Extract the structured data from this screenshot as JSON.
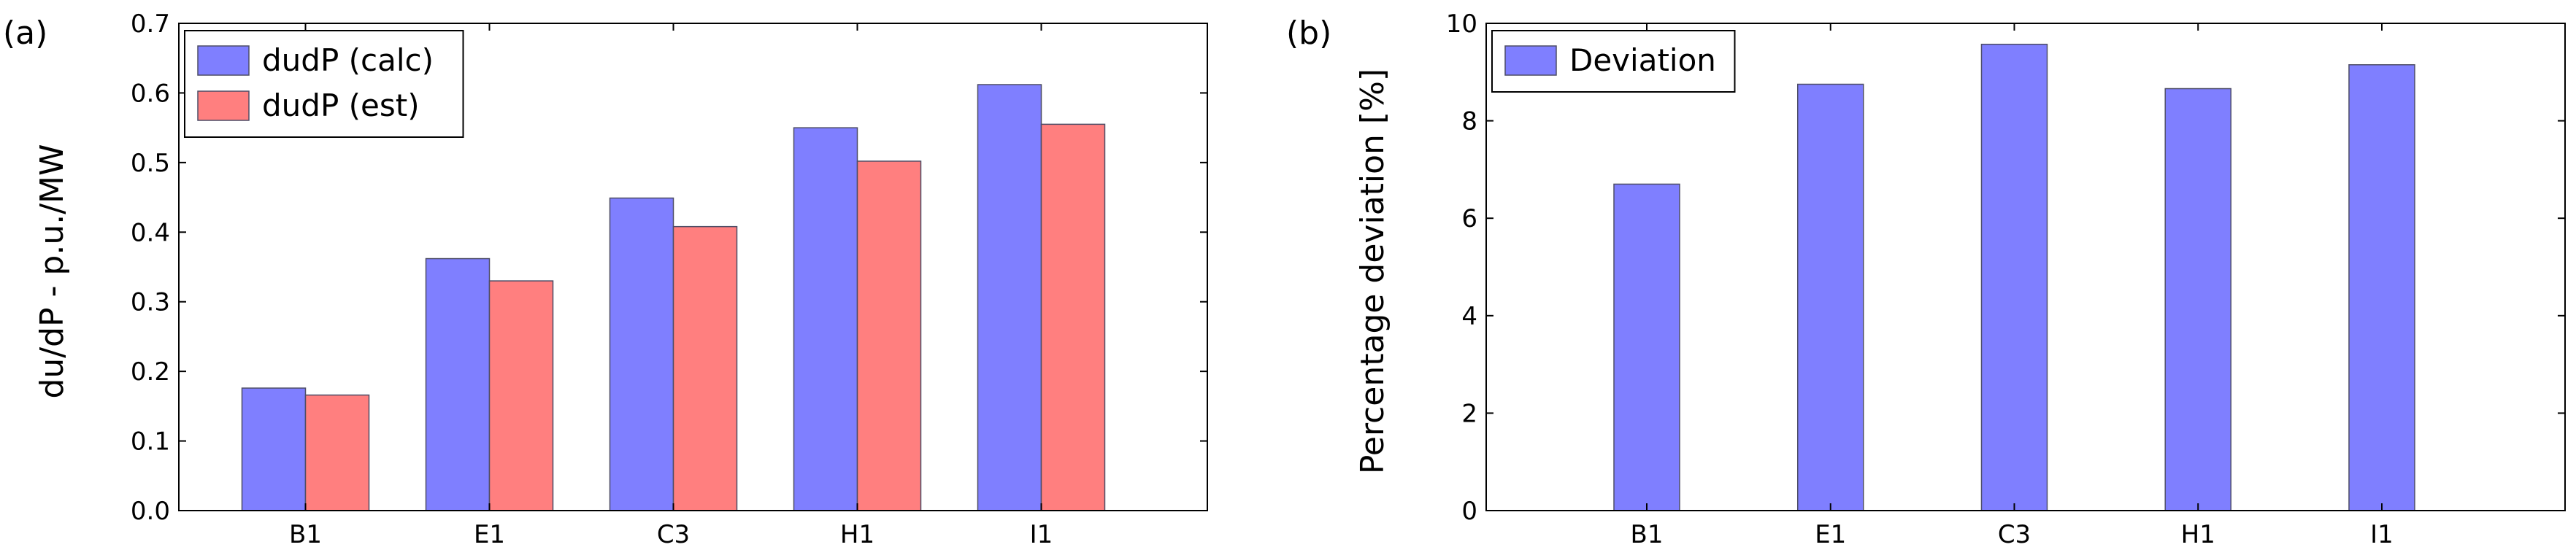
{
  "chart_data": [
    {
      "type": "bar",
      "panel_label": "(a)",
      "categories": [
        "B1",
        "E1",
        "C3",
        "H1",
        "I1"
      ],
      "series": [
        {
          "name": "dudP (calc)",
          "color": "#7f7fff",
          "values": [
            0.176,
            0.362,
            0.449,
            0.55,
            0.612
          ]
        },
        {
          "name": "dudP (est)",
          "color": "#ff7f7f",
          "values": [
            0.166,
            0.33,
            0.408,
            0.502,
            0.555
          ]
        }
      ],
      "title": "",
      "xlabel": "",
      "ylabel": "du/dP  - p.u./MW",
      "ylim": [
        0,
        0.7
      ],
      "yticks": [
        "0.0",
        "0.1",
        "0.2",
        "0.3",
        "0.4",
        "0.5",
        "0.6",
        "0.7"
      ],
      "grid": false,
      "legend": "top-left"
    },
    {
      "type": "bar",
      "panel_label": "(b)",
      "categories": [
        "B1",
        "E1",
        "C3",
        "H1",
        "I1"
      ],
      "series": [
        {
          "name": "Deviation",
          "color": "#7f7fff",
          "values": [
            6.7,
            8.75,
            9.57,
            8.66,
            9.15
          ]
        }
      ],
      "title": "",
      "xlabel": "",
      "ylabel": "Percentage deviation [%]",
      "ylim": [
        0,
        10
      ],
      "yticks": [
        "0",
        "2",
        "4",
        "6",
        "8",
        "10"
      ],
      "grid": false,
      "legend": "top-left"
    }
  ]
}
